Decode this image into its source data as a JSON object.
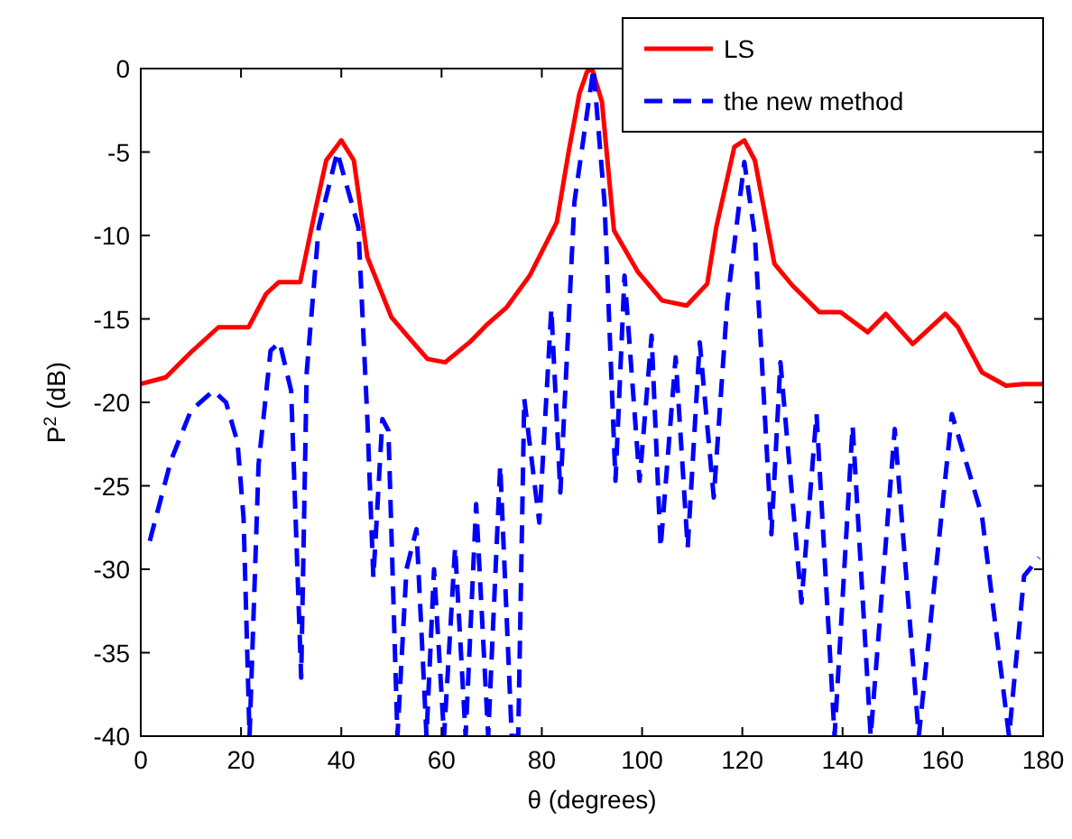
{
  "chart_data": {
    "type": "line",
    "xlabel": "θ (degrees)",
    "ylabel": "P$^{2}$ (dB)",
    "xlim": [
      0,
      180
    ],
    "xticks": [
      0,
      20,
      40,
      60,
      80,
      100,
      120,
      140,
      160,
      180
    ],
    "ylim": [
      -40,
      0
    ],
    "yticks": [
      -40,
      -35,
      -30,
      -25,
      -20,
      -15,
      -10,
      -5,
      0
    ],
    "legend": "top right",
    "grid": false,
    "series": [
      {
        "name": "LS",
        "color": "#ff0000",
        "line_style": "solid",
        "x": [
          0,
          5,
          10,
          15.5,
          21.5,
          25,
          27.5,
          31.8,
          34.8,
          37,
          40,
          42.5,
          45.2,
          50,
          54,
          57.2,
          60.7,
          65.6,
          69.2,
          73,
          77.6,
          83,
          85.4,
          87.5,
          89,
          90,
          92,
          94.4,
          99.2,
          104,
          108.9,
          113,
          114.8,
          118.4,
          120.4,
          122.5,
          126.4,
          130,
          135.4,
          139.6,
          145,
          148.6,
          154,
          160.5,
          163,
          167.8,
          172.6,
          176,
          180
        ],
        "values": [
          -18.9,
          -18.5,
          -17,
          -15.5,
          -15.5,
          -13.5,
          -12.8,
          -12.8,
          -8.5,
          -5.5,
          -4.3,
          -5.5,
          -11.3,
          -14.9,
          -16.3,
          -17.4,
          -17.6,
          -16.4,
          -15.3,
          -14.3,
          -12.4,
          -9.2,
          -4.9,
          -1.5,
          -0.2,
          0,
          -2,
          -9.7,
          -12.2,
          -13.9,
          -14.2,
          -12.9,
          -9.5,
          -4.7,
          -4.3,
          -5.5,
          -11.7,
          -13,
          -14.6,
          -14.6,
          -15.8,
          -14.7,
          -16.5,
          -14.7,
          -15.5,
          -18.2,
          -19,
          -18.9,
          -18.9
        ]
      },
      {
        "name": "the new method",
        "color": "#0000ff",
        "line_style": "dashed",
        "x": [
          1.8,
          6,
          10,
          14.5,
          17,
          19.3,
          20.5,
          21.7,
          23.5,
          25.9,
          27.7,
          30,
          32,
          33.1,
          35.5,
          39.2,
          43.4,
          45.2,
          46.4,
          48.2,
          49.4,
          51.2,
          53,
          55,
          57,
          58.5,
          60.5,
          62.7,
          64.8,
          66.9,
          69.3,
          71.7,
          74,
          75.3,
          76.5,
          79.5,
          81.9,
          83.7,
          86.5,
          90.3,
          92.5,
          94.7,
          96.5,
          99.5,
          101.9,
          103.7,
          106.7,
          109.1,
          111.5,
          114.3,
          117,
          120.4,
          122.5,
          125.8,
          127.6,
          131.8,
          134.8,
          138.4,
          142,
          145.6,
          150.4,
          155.2,
          161.8,
          167.8,
          173.2,
          176.2,
          179.2
        ],
        "values": [
          -28.3,
          -23.5,
          -20.5,
          -19.3,
          -20,
          -22.4,
          -26.9,
          -40,
          -23.7,
          -16.9,
          -16.4,
          -19.3,
          -36.5,
          -18.2,
          -9.5,
          -5,
          -9.5,
          -21,
          -30.5,
          -21,
          -21.7,
          -40,
          -30,
          -27.6,
          -40,
          -30,
          -40,
          -28.7,
          -40,
          -26.1,
          -40,
          -23.8,
          -40,
          -40,
          -19.8,
          -27.2,
          -14.4,
          -25.4,
          -8,
          0,
          -8,
          -24.7,
          -12.4,
          -24.7,
          -16,
          -28.7,
          -17.3,
          -28.7,
          -16.4,
          -25.7,
          -14,
          -5.6,
          -10,
          -27.9,
          -17.6,
          -32,
          -20.7,
          -40,
          -21.4,
          -40,
          -21.6,
          -40,
          -20.7,
          -26.8,
          -40,
          -30.4,
          -29.3
        ]
      }
    ]
  }
}
